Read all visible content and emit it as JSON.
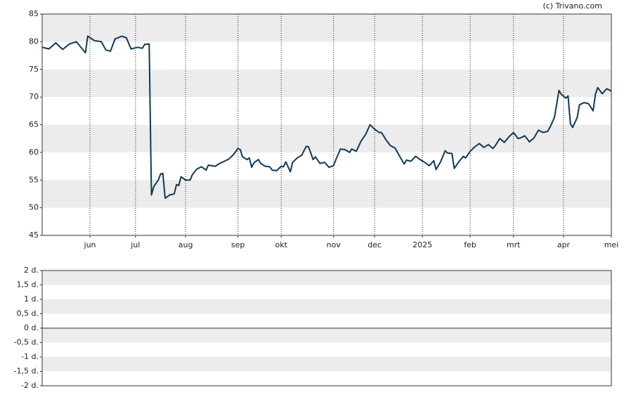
{
  "chart_data": [
    {
      "type": "line",
      "credit": "(c) Trivano.com",
      "color": "#0f3a57",
      "x": [
        0,
        3,
        6,
        9,
        12,
        15,
        17,
        19,
        20,
        23,
        26,
        28,
        30,
        32,
        35,
        37,
        39,
        42,
        44,
        45,
        47,
        48,
        49,
        51,
        52,
        53,
        54,
        56,
        58,
        59,
        60,
        61,
        63,
        65,
        66,
        68,
        70,
        72,
        73,
        76,
        78,
        80,
        82,
        84,
        86,
        87,
        88,
        90,
        91,
        92,
        93,
        95,
        96,
        98,
        100,
        101,
        103,
        105,
        106,
        107,
        109,
        110,
        112,
        114,
        116,
        117,
        119,
        120,
        122,
        124,
        126,
        128,
        129,
        131,
        133,
        135,
        136,
        138,
        140,
        142,
        144,
        146,
        148,
        149,
        151,
        153,
        155,
        157,
        159,
        160,
        162,
        164,
        166,
        168,
        170,
        172,
        173,
        175,
        177,
        178,
        180,
        181,
        183,
        185,
        186,
        188,
        190,
        192,
        194,
        196,
        198,
        199,
        201,
        203,
        205,
        207,
        209,
        210,
        212,
        214,
        216,
        218,
        220,
        222,
        223,
        225,
        227,
        228,
        230,
        231,
        232,
        233,
        235,
        236,
        238,
        240,
        242,
        243,
        244,
        246,
        248,
        250
      ],
      "values": [
        79,
        78.7,
        79.8,
        78.6,
        79.6,
        80,
        79,
        78,
        81,
        80.2,
        80,
        78.5,
        78.3,
        80.5,
        81,
        80.7,
        78.7,
        79,
        78.8,
        79.5,
        79.6,
        52.3,
        53.8,
        55,
        56.1,
        56.2,
        51.7,
        52.3,
        52.5,
        54.2,
        54,
        55.6,
        55,
        55,
        56,
        57,
        57.4,
        56.8,
        57.7,
        57.5,
        58,
        58.4,
        58.8,
        59.6,
        60.7,
        60.5,
        59.2,
        58.7,
        59,
        57.3,
        58.1,
        58.7,
        58,
        57.5,
        57.4,
        56.8,
        56.7,
        57.5,
        57.4,
        58.3,
        56.5,
        58.2,
        59,
        59.5,
        61.1,
        61,
        58.7,
        59.2,
        58,
        58.2,
        57.3,
        57.6,
        58.7,
        60.6,
        60.5,
        60,
        60.6,
        60.2,
        62,
        63.2,
        65,
        64.2,
        63.6,
        63.6,
        62.3,
        61.2,
        60.8,
        59.3,
        57.9,
        58.6,
        58.4,
        59.3,
        58.7,
        58.2,
        57.6,
        58.5,
        56.9,
        58.3,
        60.3,
        59.9,
        59.8,
        57.1,
        58.3,
        59.3,
        59,
        60.2,
        61,
        61.6,
        60.9,
        61.4,
        60.7,
        61.2,
        62.5,
        61.8,
        62.8,
        63.6,
        62.5,
        62.6,
        63,
        61.9,
        62.6,
        64,
        63.6,
        63.8,
        64.5,
        66.3,
        71.2,
        70.5,
        69.8,
        70.2,
        65.2,
        64.5,
        66.3,
        68.6,
        69,
        68.8,
        67.5,
        70.5,
        71.7,
        70.6,
        71.5,
        71.1
      ],
      "xlim": [
        0,
        250
      ],
      "xticks": [
        {
          "value": 21,
          "label": "jun"
        },
        {
          "value": 41,
          "label": "jul"
        },
        {
          "value": 63,
          "label": "aug"
        },
        {
          "value": 86,
          "label": "sep"
        },
        {
          "value": 105,
          "label": "okt"
        },
        {
          "value": 128,
          "label": "nov"
        },
        {
          "value": 146,
          "label": "dec"
        },
        {
          "value": 167,
          "label": "2025"
        },
        {
          "value": 188,
          "label": "feb"
        },
        {
          "value": 207,
          "label": "mrt"
        },
        {
          "value": 229,
          "label": "apr"
        },
        {
          "value": 250,
          "label": "mei"
        }
      ],
      "ylim": [
        45,
        85
      ],
      "yticks": [
        45,
        50,
        55,
        60,
        65,
        70,
        75,
        80,
        85
      ]
    },
    {
      "type": "bar",
      "ylim": [
        -2,
        2
      ],
      "yticks": [
        {
          "value": -2,
          "label": "-2 d."
        },
        {
          "value": -1.5,
          "label": "-1,5 d."
        },
        {
          "value": -1,
          "label": "-1 d."
        },
        {
          "value": -0.5,
          "label": "-0,5 d."
        },
        {
          "value": 0,
          "label": "0 d."
        },
        {
          "value": 0.5,
          "label": "0,5 d."
        },
        {
          "value": 1,
          "label": "1 d."
        },
        {
          "value": 1.5,
          "label": "1,5 d."
        },
        {
          "value": 2,
          "label": "2 d."
        }
      ]
    }
  ]
}
